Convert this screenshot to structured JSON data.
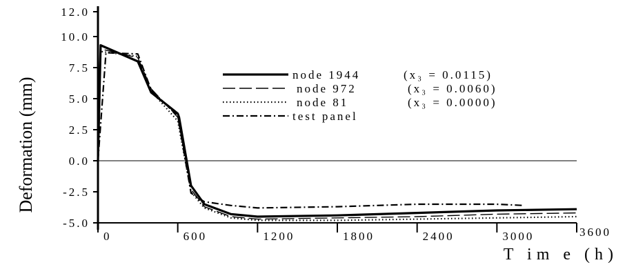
{
  "chart_data": {
    "type": "line",
    "title": "",
    "xlabel": "T im e (h)",
    "ylabel": "Deformation (mm)",
    "xlim": [
      0,
      3600
    ],
    "ylim": [
      -5.0,
      12.0
    ],
    "x_ticks": [
      0,
      600,
      1200,
      1800,
      2400,
      3000,
      3600
    ],
    "x_tick_labels": [
      "0",
      "600",
      "1200",
      "1800",
      "2400",
      "3000",
      "3600"
    ],
    "y_ticks": [
      12.0,
      10.0,
      7.5,
      5.0,
      2.5,
      0.0,
      -2.5,
      -5.0
    ],
    "y_tick_labels": [
      "12.0",
      "10.0",
      "7.5",
      "5.0",
      "2.5",
      "0.0",
      "-2.5",
      "-5.0"
    ],
    "grid": false,
    "legend_position": "top-center",
    "series": [
      {
        "name": "node 1944",
        "legend_note": "(x₃ = 0.0115)",
        "style": "solid",
        "x": [
          0,
          20,
          300,
          400,
          600,
          610,
          700,
          800,
          1000,
          1200,
          1800,
          2400,
          3000,
          3600
        ],
        "y": [
          0,
          9.3,
          8.0,
          5.5,
          3.8,
          3.5,
          -2.0,
          -3.5,
          -4.3,
          -4.5,
          -4.4,
          -4.2,
          -4.0,
          -3.9
        ]
      },
      {
        "name": "node 972",
        "legend_note": "(x₃ = 0.0060)",
        "style": "dashed",
        "x": [
          0,
          20,
          300,
          400,
          600,
          700,
          800,
          1000,
          1200,
          1800,
          2400,
          3000,
          3600
        ],
        "y": [
          0,
          9.0,
          8.3,
          5.8,
          3.5,
          -2.3,
          -3.7,
          -4.5,
          -4.7,
          -4.6,
          -4.5,
          -4.3,
          -4.2
        ]
      },
      {
        "name": "node 81",
        "legend_note": "(x₃ = 0.0000)",
        "style": "dotted",
        "x": [
          0,
          20,
          300,
          400,
          600,
          700,
          800,
          1000,
          1200,
          1800,
          2400,
          3000,
          3600
        ],
        "y": [
          0,
          8.8,
          8.4,
          5.6,
          3.2,
          -2.5,
          -3.8,
          -4.6,
          -4.8,
          -4.8,
          -4.7,
          -4.6,
          -4.5
        ]
      },
      {
        "name": "test panel",
        "legend_note": "",
        "style": "dashdot",
        "x": [
          0,
          60,
          300,
          400,
          600,
          700,
          800,
          1000,
          1200,
          1800,
          2400,
          3000,
          3200
        ],
        "y": [
          0,
          8.7,
          8.6,
          5.7,
          3.6,
          -2.6,
          -3.3,
          -3.6,
          -3.8,
          -3.7,
          -3.5,
          -3.5,
          -3.6
        ]
      }
    ]
  }
}
